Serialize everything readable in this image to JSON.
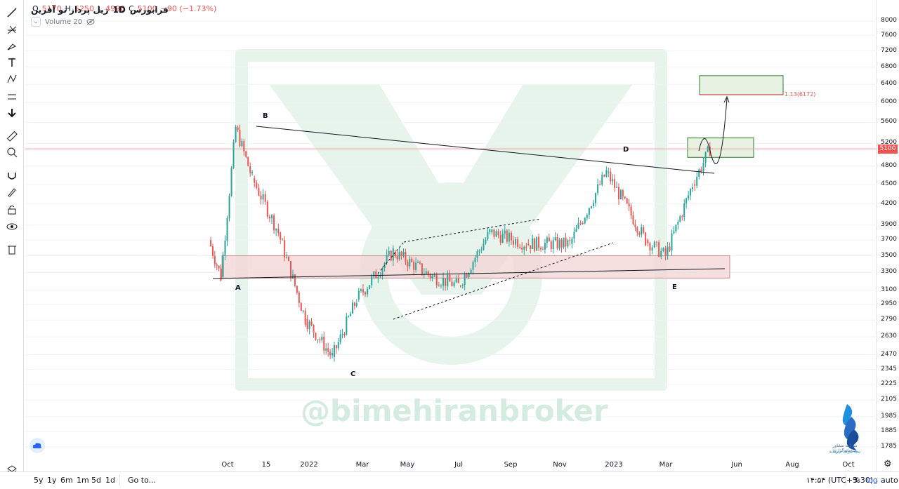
{
  "legend": {
    "symbol": "ریل پرداز نو آفرین",
    "exchange": "فرابورس",
    "interval": "1D",
    "open_label": "O",
    "open": "5170",
    "high_label": "H",
    "high": "5250",
    "low_label": "L",
    "low": "4990",
    "close_label": "C",
    "close": "5100",
    "change": "−90 (−1.73%)"
  },
  "volume": {
    "label": "Volume 20"
  },
  "price_axis": {
    "ticks": [
      "8000",
      "7600",
      "7200",
      "6800",
      "6400",
      "6000",
      "5600",
      "5200",
      "4800",
      "4500",
      "4200",
      "3900",
      "3700",
      "3500",
      "3300",
      "3100",
      "2950",
      "2790",
      "2630",
      "2470",
      "2345",
      "2225",
      "2105",
      "1985",
      "1885",
      "1785"
    ],
    "current_price": "5100",
    "scale": "log"
  },
  "time_axis": {
    "labels": [
      "Oct",
      "15",
      "2022",
      "Mar",
      "May",
      "Jul",
      "Sep",
      "Nov",
      "2023",
      "Mar",
      "Jun",
      "Aug",
      "Oct"
    ]
  },
  "waves": [
    "A",
    "B",
    "C",
    "D",
    "E"
  ],
  "target_label": "1.13(6172)",
  "watermark": "@bimehiranbroker",
  "brand": {
    "line1": "شرکت مشاور سرمایه‌گذاری",
    "line2": "بیمه ایران سرمایه"
  },
  "bottom_bar": {
    "ranges": [
      "5y",
      "1y",
      "6m",
      "1m",
      "5d",
      "1d"
    ],
    "goto": "Go to...",
    "clock": "۱۴:۵۴ (UTC+3:30)",
    "percent": "%",
    "log": "log",
    "auto": "auto"
  },
  "colors": {
    "up": "#26a69a",
    "down": "#ef5350",
    "accent": "#2962ff",
    "zone": "#f2d7d7",
    "target_zone": "#e8f2e3"
  },
  "chart_data": {
    "type": "candlestick",
    "symbol": "ریل پرداز نو آفرین",
    "interval": "1D",
    "y_scale": "log",
    "ylim": [
      1785,
      8000
    ],
    "x_range": [
      "2021-09",
      "2023-10"
    ],
    "series": [
      {
        "name": "price",
        "points": [
          {
            "date": "2021-10-01",
            "close": 3700
          },
          {
            "date": "2021-10-15",
            "close": 3250
          },
          {
            "date": "2021-11-01",
            "close": 5500
          },
          {
            "date": "2021-11-20",
            "close": 4600
          },
          {
            "date": "2021-12-20",
            "close": 3800
          },
          {
            "date": "2022-01-20",
            "close": 2800
          },
          {
            "date": "2022-02-20",
            "close": 2450
          },
          {
            "date": "2022-03-20",
            "close": 3000
          },
          {
            "date": "2022-05-01",
            "close": 3550
          },
          {
            "date": "2022-06-15",
            "close": 3250
          },
          {
            "date": "2022-07-15",
            "close": 3150
          },
          {
            "date": "2022-08-20",
            "close": 3800
          },
          {
            "date": "2022-10-01",
            "close": 3650
          },
          {
            "date": "2022-11-20",
            "close": 3650
          },
          {
            "date": "2023-01-01",
            "close": 4700
          },
          {
            "date": "2023-02-15",
            "close": 3700
          },
          {
            "date": "2023-03-10",
            "close": 3500
          },
          {
            "date": "2023-04-10",
            "close": 4500
          },
          {
            "date": "2023-04-30",
            "close": 5100
          }
        ]
      }
    ],
    "annotations": {
      "waves": {
        "A": 3250,
        "B": 5500,
        "C": 2450,
        "D": 4750,
        "E": 3500
      },
      "support_zone": [
        3300,
        3500
      ],
      "target_zone": [
        6172,
        6600
      ],
      "current_zone": [
        4950,
        5300
      ],
      "current_price": 5100
    }
  }
}
